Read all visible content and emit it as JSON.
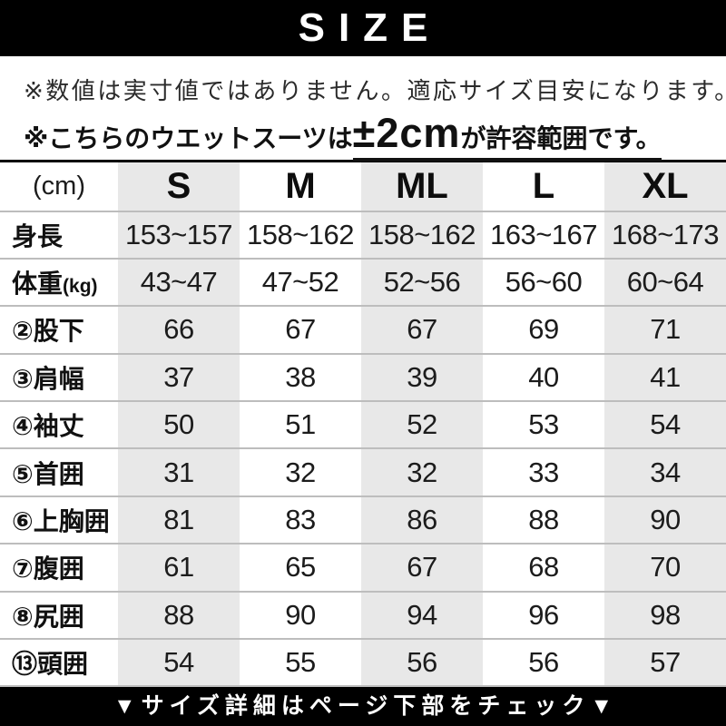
{
  "header": {
    "title": "SIZE"
  },
  "notes": {
    "line1": "※数値は実寸値ではありません。適応サイズ目安になります。",
    "line2_prefix": "※こちらのウエットスーツは",
    "line2_highlight": "±2cm",
    "line2_suffix": "が許容範囲です。"
  },
  "chart_data": {
    "type": "table",
    "title": "SIZE",
    "unit_label": "(cm)",
    "columns": [
      "S",
      "M",
      "ML",
      "L",
      "XL"
    ],
    "shaded_columns": [
      "S",
      "ML",
      "XL"
    ],
    "rows": [
      {
        "label": "身長",
        "unit": "",
        "values": [
          "153~157",
          "158~162",
          "158~162",
          "163~167",
          "168~173"
        ]
      },
      {
        "label": "体重",
        "unit": "(kg)",
        "values": [
          "43~47",
          "47~52",
          "52~56",
          "56~60",
          "60~64"
        ]
      },
      {
        "label": "②股下",
        "unit": "",
        "values": [
          "66",
          "67",
          "67",
          "69",
          "71"
        ]
      },
      {
        "label": "③肩幅",
        "unit": "",
        "values": [
          "37",
          "38",
          "39",
          "40",
          "41"
        ]
      },
      {
        "label": "④袖丈",
        "unit": "",
        "values": [
          "50",
          "51",
          "52",
          "53",
          "54"
        ]
      },
      {
        "label": "⑤首囲",
        "unit": "",
        "values": [
          "31",
          "32",
          "32",
          "33",
          "34"
        ]
      },
      {
        "label": "⑥上胸囲",
        "unit": "",
        "values": [
          "81",
          "83",
          "86",
          "88",
          "90"
        ]
      },
      {
        "label": "⑦腹囲",
        "unit": "",
        "values": [
          "61",
          "65",
          "67",
          "68",
          "70"
        ]
      },
      {
        "label": "⑧尻囲",
        "unit": "",
        "values": [
          "88",
          "90",
          "94",
          "96",
          "98"
        ]
      },
      {
        "label": "⑬頭囲",
        "unit": "",
        "values": [
          "54",
          "55",
          "56",
          "56",
          "57"
        ]
      }
    ]
  },
  "footer": {
    "text": "▼サイズ詳細はページ下部をチェック▼"
  },
  "colors": {
    "bar_background": "#000000",
    "bar_text": "#ffffff",
    "column_shade": "#e8e8e8",
    "row_border": "#bdbdbd",
    "table_top_border": "#000000"
  }
}
